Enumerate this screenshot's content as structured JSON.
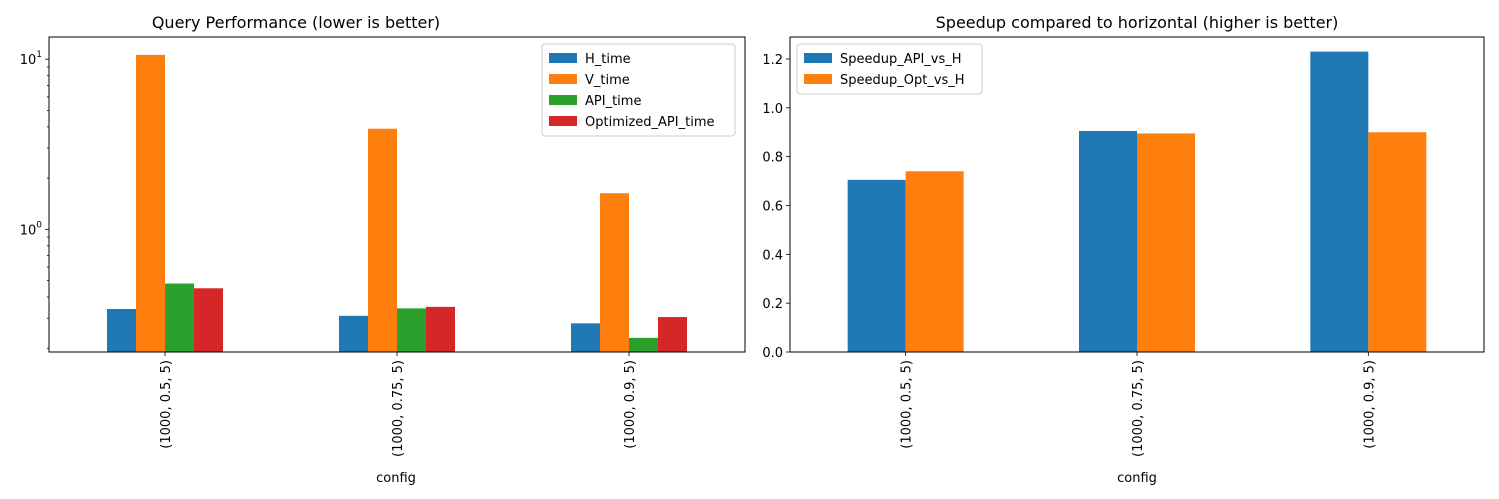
{
  "chart_data": [
    {
      "type": "bar",
      "title": "Query Performance (lower is better)",
      "xlabel": "config",
      "ylabel": "",
      "yscale": "log",
      "ylim": [
        0.19,
        13.5
      ],
      "yticks": [
        {
          "value": 1,
          "label": "10",
          "sup": "0"
        },
        {
          "value": 10,
          "label": "10",
          "sup": "1"
        }
      ],
      "grid": false,
      "legend": "top-right",
      "categories": [
        "(1000, 0.5, 5)",
        "(1000, 0.75, 5)",
        "(1000, 0.9, 5)"
      ],
      "series": [
        {
          "name": "H_time",
          "color": "#1f77b4",
          "values": [
            0.34,
            0.31,
            0.28
          ]
        },
        {
          "name": "V_time",
          "color": "#ff7f0e",
          "values": [
            10.6,
            3.9,
            1.63
          ]
        },
        {
          "name": "API_time",
          "color": "#2ca02c",
          "values": [
            0.48,
            0.343,
            0.23
          ]
        },
        {
          "name": "Optimized_API_time",
          "color": "#d62728",
          "values": [
            0.45,
            0.35,
            0.305
          ]
        }
      ]
    },
    {
      "type": "bar",
      "title": "Speedup compared to horizontal (higher is better)",
      "xlabel": "config",
      "ylabel": "",
      "yscale": "linear",
      "ylim": [
        0,
        1.29
      ],
      "yticks": [
        {
          "value": 0.0,
          "label": "0.0"
        },
        {
          "value": 0.2,
          "label": "0.2"
        },
        {
          "value": 0.4,
          "label": "0.4"
        },
        {
          "value": 0.6,
          "label": "0.6"
        },
        {
          "value": 0.8,
          "label": "0.8"
        },
        {
          "value": 1.0,
          "label": "1.0"
        },
        {
          "value": 1.2,
          "label": "1.2"
        }
      ],
      "grid": false,
      "legend": "top-left",
      "categories": [
        "(1000, 0.5, 5)",
        "(1000, 0.75, 5)",
        "(1000, 0.9, 5)"
      ],
      "series": [
        {
          "name": "Speedup_API_vs_H",
          "color": "#1f77b4",
          "values": [
            0.705,
            0.905,
            1.23
          ]
        },
        {
          "name": "Speedup_Opt_vs_H",
          "color": "#ff7f0e",
          "values": [
            0.74,
            0.895,
            0.9
          ]
        }
      ]
    }
  ]
}
